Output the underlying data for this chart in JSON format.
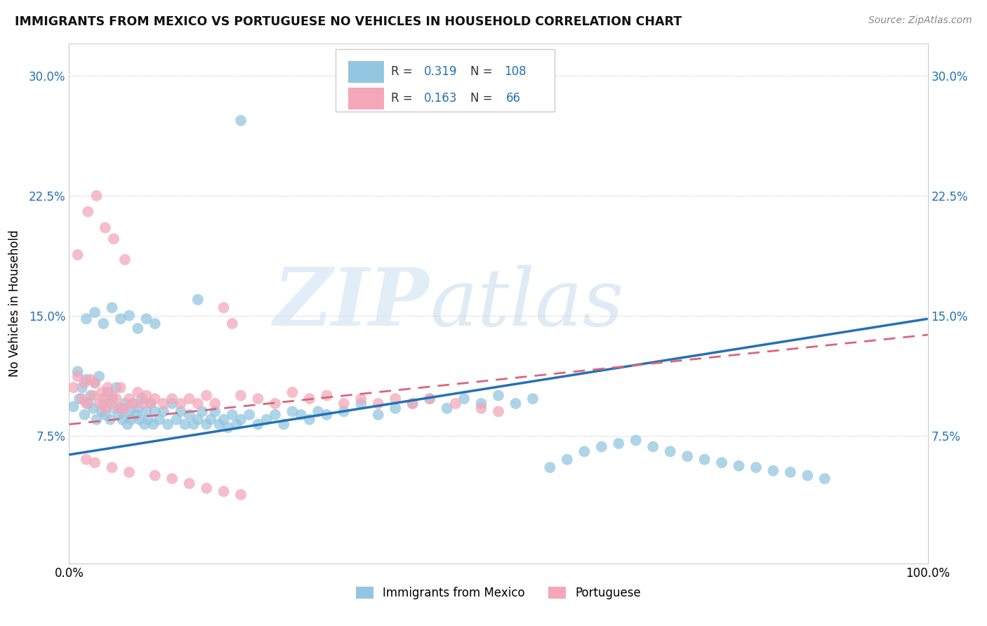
{
  "title": "IMMIGRANTS FROM MEXICO VS PORTUGUESE NO VEHICLES IN HOUSEHOLD CORRELATION CHART",
  "source": "Source: ZipAtlas.com",
  "ylabel": "No Vehicles in Household",
  "xlim": [
    0,
    1.0
  ],
  "ylim": [
    -0.005,
    0.32
  ],
  "ytick_labels": [
    "7.5%",
    "15.0%",
    "22.5%",
    "30.0%"
  ],
  "ytick_vals": [
    0.075,
    0.15,
    0.225,
    0.3
  ],
  "blue_color": "#93c6e0",
  "pink_color": "#f4a7b9",
  "blue_line_color": "#2471b5",
  "pink_line_color": "#d9667a",
  "legend_label1": "Immigrants from Mexico",
  "legend_label2": "Portuguese",
  "blue_line_x": [
    0.0,
    1.0
  ],
  "blue_line_y": [
    0.063,
    0.148
  ],
  "pink_line_x": [
    0.0,
    1.0
  ],
  "pink_line_y": [
    0.082,
    0.138
  ],
  "blue_scatter_x": [
    0.005,
    0.01,
    0.012,
    0.015,
    0.018,
    0.02,
    0.022,
    0.025,
    0.028,
    0.03,
    0.032,
    0.035,
    0.038,
    0.04,
    0.042,
    0.045,
    0.048,
    0.05,
    0.052,
    0.055,
    0.058,
    0.06,
    0.062,
    0.065,
    0.068,
    0.07,
    0.072,
    0.075,
    0.078,
    0.08,
    0.082,
    0.085,
    0.088,
    0.09,
    0.092,
    0.095,
    0.098,
    0.1,
    0.105,
    0.11,
    0.115,
    0.12,
    0.125,
    0.13,
    0.135,
    0.14,
    0.145,
    0.15,
    0.155,
    0.16,
    0.165,
    0.17,
    0.175,
    0.18,
    0.185,
    0.19,
    0.195,
    0.2,
    0.21,
    0.22,
    0.23,
    0.24,
    0.25,
    0.26,
    0.27,
    0.28,
    0.29,
    0.3,
    0.32,
    0.34,
    0.36,
    0.38,
    0.4,
    0.42,
    0.44,
    0.46,
    0.48,
    0.5,
    0.52,
    0.54,
    0.56,
    0.58,
    0.6,
    0.62,
    0.64,
    0.66,
    0.68,
    0.7,
    0.72,
    0.74,
    0.76,
    0.78,
    0.8,
    0.82,
    0.84,
    0.86,
    0.88,
    0.02,
    0.03,
    0.04,
    0.05,
    0.06,
    0.07,
    0.08,
    0.09,
    0.1,
    0.15,
    0.2
  ],
  "blue_scatter_y": [
    0.093,
    0.115,
    0.098,
    0.105,
    0.088,
    0.11,
    0.095,
    0.1,
    0.092,
    0.108,
    0.085,
    0.112,
    0.09,
    0.095,
    0.088,
    0.102,
    0.085,
    0.098,
    0.092,
    0.105,
    0.088,
    0.092,
    0.085,
    0.095,
    0.082,
    0.09,
    0.085,
    0.095,
    0.088,
    0.092,
    0.085,
    0.098,
    0.082,
    0.09,
    0.085,
    0.095,
    0.082,
    0.09,
    0.085,
    0.09,
    0.082,
    0.095,
    0.085,
    0.09,
    0.082,
    0.088,
    0.082,
    0.085,
    0.09,
    0.082,
    0.085,
    0.09,
    0.082,
    0.085,
    0.08,
    0.088,
    0.082,
    0.085,
    0.088,
    0.082,
    0.085,
    0.088,
    0.082,
    0.09,
    0.088,
    0.085,
    0.09,
    0.088,
    0.09,
    0.095,
    0.088,
    0.092,
    0.095,
    0.098,
    0.092,
    0.098,
    0.095,
    0.1,
    0.095,
    0.098,
    0.055,
    0.06,
    0.065,
    0.068,
    0.07,
    0.072,
    0.068,
    0.065,
    0.062,
    0.06,
    0.058,
    0.056,
    0.055,
    0.053,
    0.052,
    0.05,
    0.048,
    0.148,
    0.152,
    0.145,
    0.155,
    0.148,
    0.15,
    0.142,
    0.148,
    0.145,
    0.16,
    0.272
  ],
  "pink_scatter_x": [
    0.005,
    0.01,
    0.015,
    0.018,
    0.02,
    0.025,
    0.028,
    0.03,
    0.035,
    0.038,
    0.04,
    0.042,
    0.045,
    0.048,
    0.05,
    0.055,
    0.058,
    0.06,
    0.065,
    0.07,
    0.075,
    0.08,
    0.085,
    0.09,
    0.095,
    0.1,
    0.11,
    0.12,
    0.13,
    0.14,
    0.15,
    0.16,
    0.17,
    0.18,
    0.19,
    0.2,
    0.22,
    0.24,
    0.26,
    0.28,
    0.3,
    0.32,
    0.34,
    0.36,
    0.38,
    0.4,
    0.42,
    0.45,
    0.48,
    0.5,
    0.02,
    0.03,
    0.05,
    0.07,
    0.1,
    0.12,
    0.14,
    0.16,
    0.18,
    0.2,
    0.01,
    0.022,
    0.032,
    0.042,
    0.052,
    0.065
  ],
  "pink_scatter_y": [
    0.105,
    0.112,
    0.098,
    0.108,
    0.095,
    0.11,
    0.1,
    0.108,
    0.095,
    0.102,
    0.098,
    0.092,
    0.105,
    0.095,
    0.1,
    0.098,
    0.092,
    0.105,
    0.092,
    0.098,
    0.095,
    0.102,
    0.095,
    0.1,
    0.095,
    0.098,
    0.095,
    0.098,
    0.095,
    0.098,
    0.095,
    0.1,
    0.095,
    0.155,
    0.145,
    0.1,
    0.098,
    0.095,
    0.102,
    0.098,
    0.1,
    0.095,
    0.098,
    0.095,
    0.098,
    0.095,
    0.098,
    0.095,
    0.092,
    0.09,
    0.06,
    0.058,
    0.055,
    0.052,
    0.05,
    0.048,
    0.045,
    0.042,
    0.04,
    0.038,
    0.188,
    0.215,
    0.225,
    0.205,
    0.198,
    0.185
  ]
}
